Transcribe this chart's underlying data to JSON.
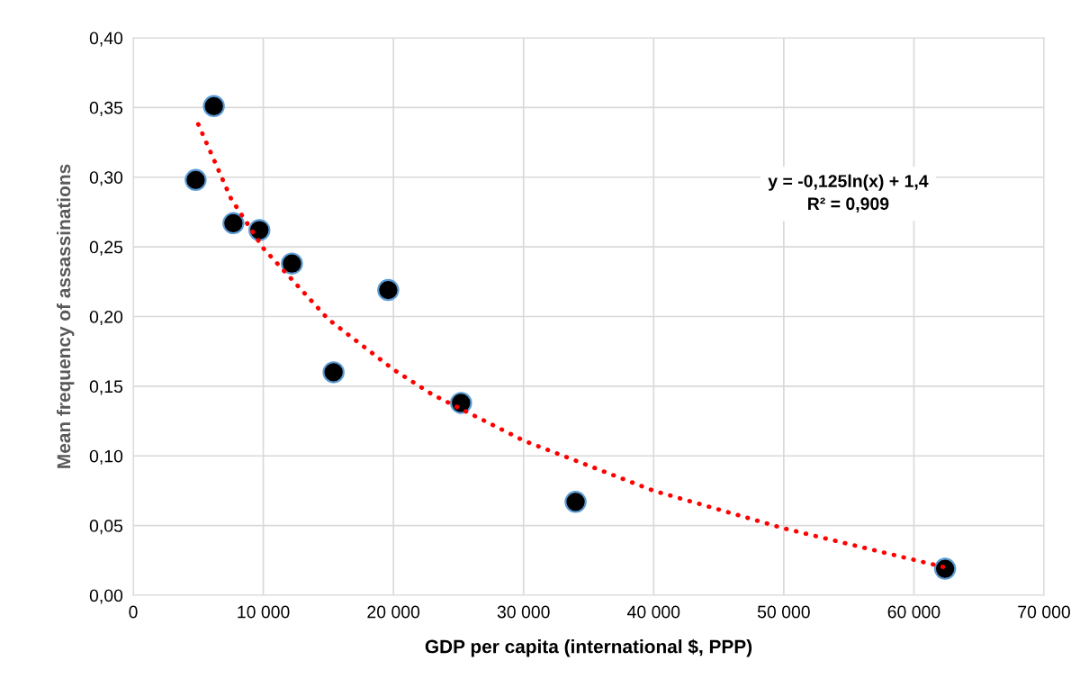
{
  "chart_data": {
    "type": "scatter",
    "xlabel": "GDP per capita (international $, PPP)",
    "ylabel": "Mean frequency of assassinations",
    "series": [
      {
        "color": "#000000",
        "marker": "circle",
        "x": [
          4800,
          6200,
          7700,
          9700,
          12200,
          15400,
          19600,
          25200,
          34000,
          62400
        ],
        "values": [
          0.298,
          0.351,
          0.267,
          0.262,
          0.238,
          0.16,
          0.219,
          0.138,
          0.067,
          0.019
        ]
      },
      {
        "type": "line",
        "color": "#ff0000",
        "line_style": "dotted",
        "marker": "none",
        "x": [
          5000,
          7500,
          10000,
          15000,
          20000,
          23000,
          30000,
          40000,
          50000,
          62400
        ],
        "values": [
          0.338,
          0.285,
          0.249,
          0.198,
          0.162,
          0.144,
          0.111,
          0.075,
          0.048,
          0.02
        ]
      }
    ],
    "annotations": [
      "y = -0,125ln(x) + 1,4\nR² = 0,909"
    ],
    "xlim": [
      0,
      70000
    ],
    "xticks": [
      0,
      {
        "value": 10000,
        "label": "10 000"
      },
      {
        "value": 20000,
        "label": "20 000"
      },
      {
        "value": 30000,
        "label": "30 000"
      },
      {
        "value": 40000,
        "label": "40 000"
      },
      {
        "value": 50000,
        "label": "50 000"
      },
      {
        "value": 60000,
        "label": "60 000"
      },
      {
        "value": 70000,
        "label": "70 000"
      }
    ],
    "ylim": [
      0,
      0.4
    ],
    "yticks": [
      {
        "value": 0,
        "label": "0,00"
      },
      {
        "value": 0.05,
        "label": "0,05"
      },
      {
        "value": 0.1,
        "label": "0,10"
      },
      {
        "value": 0.15,
        "label": "0,15"
      },
      {
        "value": 0.2,
        "label": "0,20"
      },
      {
        "value": 0.25,
        "label": "0,25"
      },
      {
        "value": 0.3,
        "label": "0,30"
      },
      {
        "value": 0.35,
        "label": "0,35"
      },
      {
        "value": 0.4,
        "label": "0,40"
      }
    ],
    "grid": true
  }
}
